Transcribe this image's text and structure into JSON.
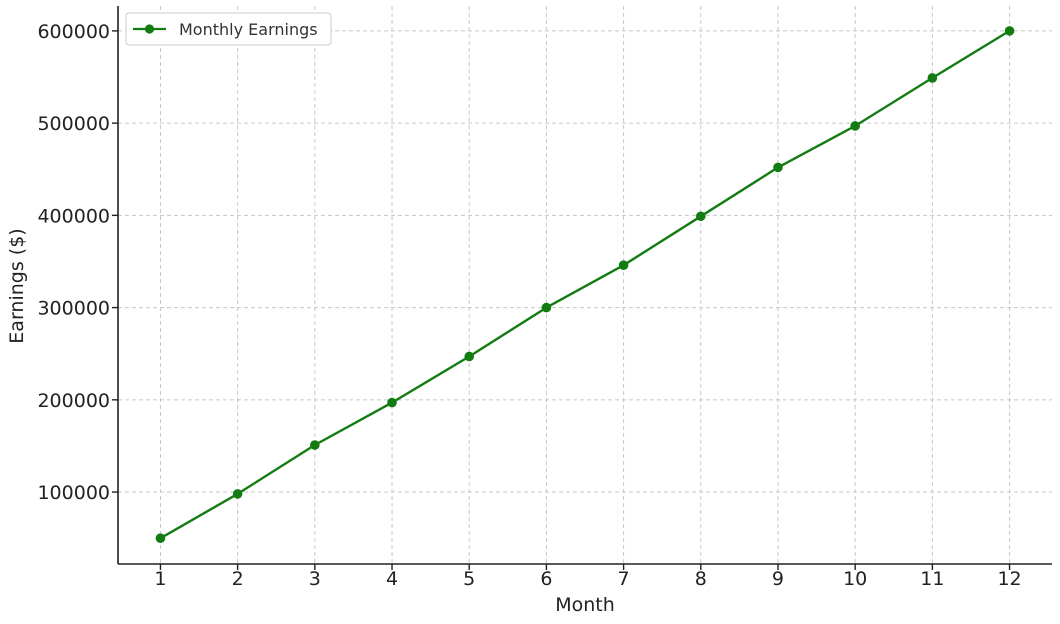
{
  "chart_data": {
    "type": "line",
    "title": "",
    "xlabel": "Month",
    "ylabel": "Earnings ($)",
    "x": [
      1,
      2,
      3,
      4,
      5,
      6,
      7,
      8,
      9,
      10,
      11,
      12
    ],
    "series": [
      {
        "name": "Monthly Earnings",
        "color": "#127c12",
        "marker": "circle",
        "values": [
          50000,
          98000,
          151000,
          197000,
          247000,
          300000,
          346000,
          399000,
          452000,
          497000,
          549000,
          600000
        ]
      }
    ],
    "xlim": [
      0.45,
      12.55
    ],
    "ylim": [
      22000,
      627000
    ],
    "yticks": [
      100000,
      200000,
      300000,
      400000,
      500000,
      600000
    ],
    "xticks": [
      1,
      2,
      3,
      4,
      5,
      6,
      7,
      8,
      9,
      10,
      11,
      12
    ],
    "grid": true,
    "legend_position": "top-left"
  }
}
